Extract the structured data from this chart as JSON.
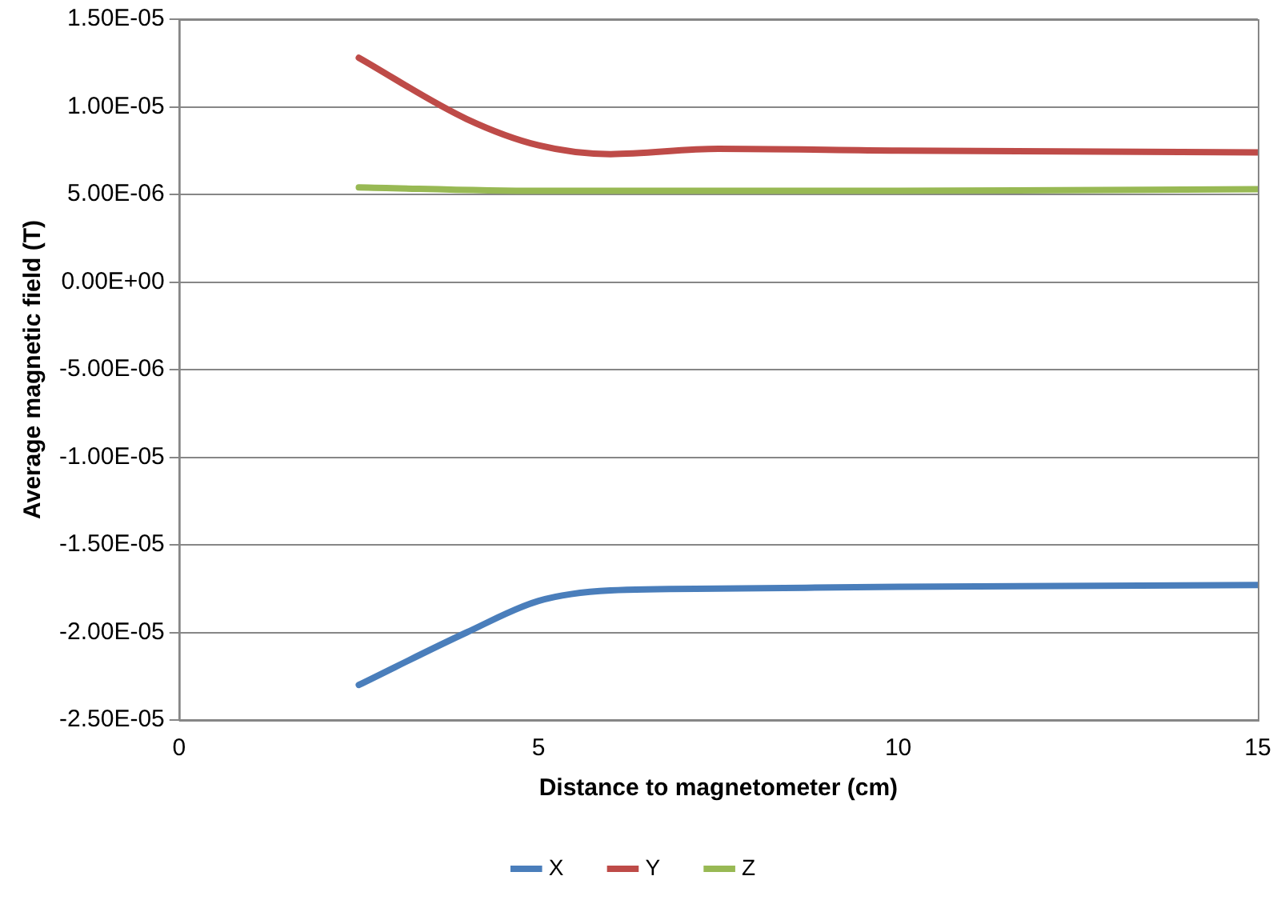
{
  "chart_data": {
    "type": "line",
    "xlabel": "Distance to magnetometer (cm)",
    "ylabel": "Average magnetic field (T)",
    "xlim": [
      0,
      15
    ],
    "xticks": [
      0,
      5,
      10,
      15
    ],
    "ylim": [
      -2.5e-05,
      1.5e-05
    ],
    "yticks": [
      {
        "value": -2.5e-05,
        "label": "-2.50E-05"
      },
      {
        "value": -2e-05,
        "label": "-2.00E-05"
      },
      {
        "value": -1.5e-05,
        "label": "-1.50E-05"
      },
      {
        "value": -1e-05,
        "label": "-1.00E-05"
      },
      {
        "value": -5e-06,
        "label": "-5.00E-06"
      },
      {
        "value": 0,
        "label": "0.00E+00"
      },
      {
        "value": 5e-06,
        "label": "5.00E-06"
      },
      {
        "value": 1e-05,
        "label": "1.00E-05"
      },
      {
        "value": 1.5e-05,
        "label": "1.50E-05"
      }
    ],
    "grid": "y",
    "legend": "bottom",
    "marker": "none",
    "line_style": "solid",
    "series": [
      {
        "name": "X",
        "color": "#4a7ebb",
        "x": [
          2.5,
          4,
          5,
          6,
          7.5,
          10,
          15
        ],
        "values": [
          -2.3e-05,
          -2e-05,
          -1.82e-05,
          -1.76e-05,
          -1.75e-05,
          -1.74e-05,
          -1.73e-05
        ]
      },
      {
        "name": "Y",
        "color": "#be4b48",
        "x": [
          2.5,
          4,
          5,
          6,
          7.5,
          10,
          15
        ],
        "values": [
          1.28e-05,
          9.3e-06,
          7.8e-06,
          7.3e-06,
          7.6e-06,
          7.5e-06,
          7.4e-06
        ]
      },
      {
        "name": "Z",
        "color": "#98b954",
        "x": [
          2.5,
          5,
          10,
          15
        ],
        "values": [
          5.4e-06,
          5.2e-06,
          5.2e-06,
          5.3e-06
        ]
      }
    ]
  }
}
